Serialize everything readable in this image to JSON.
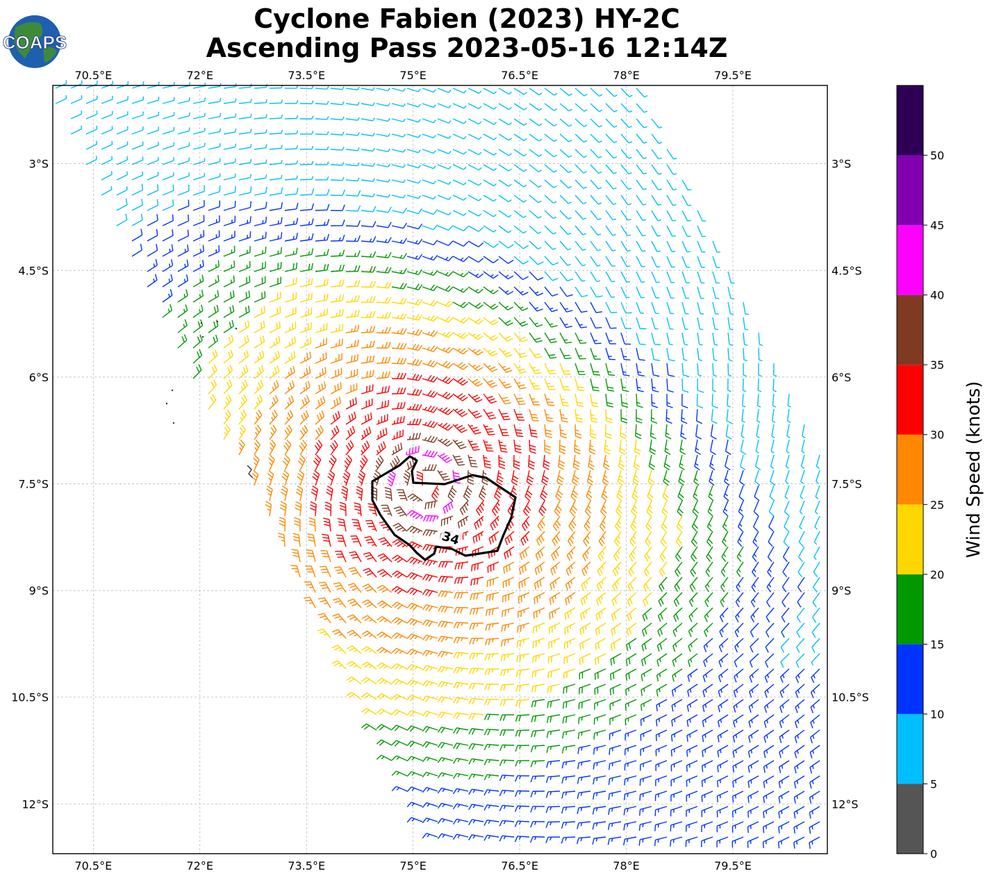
{
  "figure": {
    "title_line1": "Cyclone Fabien (2023) HY-2C",
    "title_line2": "Ascending Pass 2023-05-16 12:14Z",
    "logo_text": "COAPS"
  },
  "chart_data": {
    "type": "wind_barb_map",
    "projection": "PlateCarree",
    "lon_range": [
      69.93,
      80.83
    ],
    "lat_range": [
      -12.7,
      -1.9
    ],
    "lon_ticks": [
      70.5,
      72,
      73.5,
      75,
      76.5,
      78,
      79.5
    ],
    "lon_tick_labels": [
      "70.5°E",
      "72°E",
      "73.5°E",
      "75°E",
      "76.5°E",
      "78°E",
      "79.5°E"
    ],
    "lat_ticks": [
      -3,
      -4.5,
      -6,
      -7.5,
      -9,
      -10.5,
      -12
    ],
    "lat_tick_labels": [
      "3°S",
      "4.5°S",
      "6°S",
      "7.5°S",
      "9°S",
      "10.5°S",
      "12°S"
    ],
    "gridlines": true,
    "storm_center_lon": 75.2,
    "storm_center_lat": -7.5,
    "contour_label": "34",
    "contour_knots": 34,
    "colorbar": {
      "label": "Wind Speed (knots)",
      "bounds": [
        0,
        5,
        10,
        15,
        20,
        25,
        30,
        35,
        40,
        45,
        50,
        55
      ],
      "tick_labels": [
        "0",
        "5",
        "10",
        "15",
        "20",
        "25",
        "30",
        "35",
        "40",
        "45",
        "50"
      ],
      "colors": [
        "#555555",
        "#00bfff",
        "#0033ff",
        "#009900",
        "#ffd700",
        "#ff8800",
        "#ff0000",
        "#7f3a22",
        "#ff00ff",
        "#8000b0",
        "#2d0055"
      ]
    }
  }
}
